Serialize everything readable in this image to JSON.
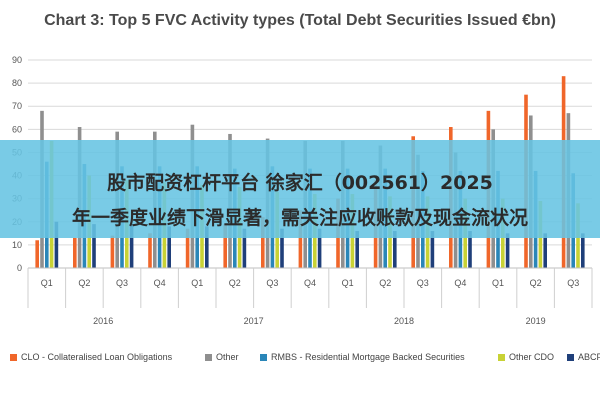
{
  "chart_data": {
    "type": "bar",
    "title": "Chart 3: Top 5 FVC Activity types (Total Debt Securities Issued €bn)",
    "ylim": [
      0,
      90
    ],
    "yticks": [
      "0",
      "10",
      "20",
      "30",
      "40",
      "50",
      "60",
      "70",
      "80",
      "90"
    ],
    "quarter_labels": [
      "Q1",
      "Q2",
      "Q3",
      "Q4",
      "Q1",
      "Q2",
      "Q3",
      "Q4",
      "Q1",
      "Q2",
      "Q3",
      "Q4",
      "Q1",
      "Q2",
      "Q3"
    ],
    "years": [
      {
        "label": "2016",
        "span": 4
      },
      {
        "label": "2017",
        "span": 4
      },
      {
        "label": "2018",
        "span": 4
      },
      {
        "label": "2019",
        "span": 3
      }
    ],
    "grid": true,
    "legend_position": "bottom",
    "series": [
      {
        "name": "CLO - Collateralised Loan Obligations",
        "color": "#f0662a",
        "values": [
          12,
          13,
          14,
          15,
          17,
          19,
          22,
          25,
          30,
          38,
          57,
          61,
          68,
          75,
          83
        ]
      },
      {
        "name": "Other",
        "color": "#8f8f8f",
        "values": [
          68,
          61,
          59,
          59,
          62,
          58,
          56,
          55,
          55,
          53,
          49,
          50,
          60,
          66,
          67
        ]
      },
      {
        "name": "RMBS - Residential Mortgage Backed Securities",
        "color": "#2a86b8",
        "values": [
          46,
          45,
          44,
          44,
          44,
          43,
          44,
          43,
          43,
          43,
          42,
          42,
          42,
          42,
          41
        ]
      },
      {
        "name": "Other CDO",
        "color": "#c8d235",
        "values": [
          55,
          40,
          38,
          37,
          36,
          35,
          33,
          32,
          32,
          31,
          31,
          30,
          30,
          29,
          28
        ]
      },
      {
        "name": "ABCP",
        "color": "#1f3f7a",
        "values": [
          20,
          19,
          19,
          18,
          18,
          17,
          17,
          17,
          16,
          16,
          16,
          16,
          15,
          15,
          15
        ]
      }
    ]
  },
  "overlay": {
    "line1": "股市配资杠杆平台 徐家汇（002561）2025",
    "line2": "年一季度业绩下滑显著，需关注应收账款及现金流状况"
  }
}
